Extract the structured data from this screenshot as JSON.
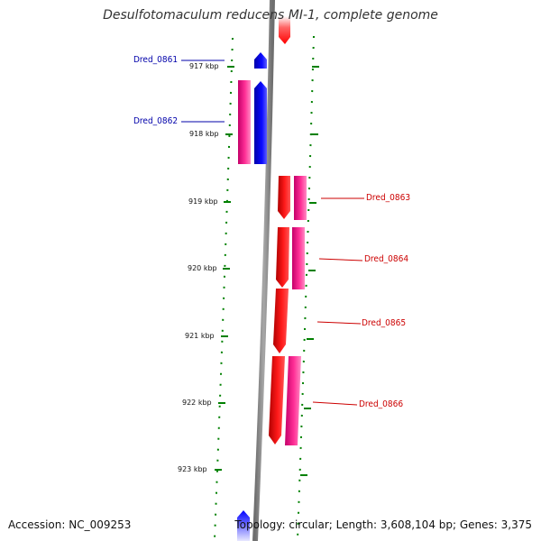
{
  "header": {
    "title": "Desulfotomaculum reducens MI-1, complete genome"
  },
  "footer": {
    "accession": "Accession: NC_009253",
    "topology": "Topology: circular; Length: 3,608,104 bp; Genes: 3,375"
  },
  "ticks": [
    {
      "label": "917 kbp"
    },
    {
      "label": "918 kbp"
    },
    {
      "label": "919 kbp"
    },
    {
      "label": "920 kbp"
    },
    {
      "label": "921 kbp"
    },
    {
      "label": "922 kbp"
    },
    {
      "label": "923 kbp"
    }
  ],
  "genes": [
    {
      "label": "Dred_0861",
      "strand": "reverse"
    },
    {
      "label": "Dred_0862",
      "strand": "reverse"
    },
    {
      "label": "Dred_0863",
      "strand": "forward"
    },
    {
      "label": "Dred_0864",
      "strand": "forward"
    },
    {
      "label": "Dred_0865",
      "strand": "forward"
    },
    {
      "label": "Dred_0866",
      "strand": "forward"
    }
  ],
  "colors": {
    "forward_cds": "#ff0000",
    "forward_gene": "#ff1493",
    "reverse_cds": "#0000ff",
    "reverse_gene": "#ff1493",
    "backbone": "#808080",
    "ticks": "#008000",
    "left_label": "#0000aa",
    "right_label": "#cc0000"
  }
}
